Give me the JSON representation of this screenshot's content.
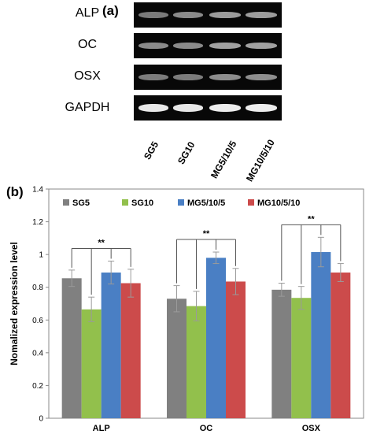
{
  "gel": {
    "panel_label": "(a)",
    "genes": [
      "ALP",
      "OC",
      "OSX",
      "GAPDH"
    ],
    "lanes": [
      "SG5",
      "SG10",
      "MG5/10/5",
      "MG10/5/10"
    ]
  },
  "chart_panel_label": "(b)",
  "chart_data": {
    "type": "bar",
    "categories": [
      "ALP",
      "OC",
      "OSX"
    ],
    "series": [
      {
        "name": "SG5",
        "values": [
          0.855,
          0.73,
          0.785
        ],
        "errors": [
          0.05,
          0.08,
          0.04
        ],
        "color": "#808080"
      },
      {
        "name": "SG10",
        "values": [
          0.665,
          0.685,
          0.735
        ],
        "errors": [
          0.075,
          0.09,
          0.07
        ],
        "color": "#92c04c"
      },
      {
        "name": "MG5/10/5",
        "values": [
          0.89,
          0.98,
          1.015
        ],
        "errors": [
          0.07,
          0.035,
          0.09
        ],
        "color": "#4a7fc4"
      },
      {
        "name": "MG10/5/10",
        "values": [
          0.825,
          0.835,
          0.89
        ],
        "errors": [
          0.085,
          0.08,
          0.055
        ],
        "color": "#cc4b4b"
      }
    ],
    "ylabel": "Nomalized expression level",
    "xlabel": "",
    "ylim": [
      0,
      1.4
    ],
    "yticks": [
      "0",
      "0.2",
      "0.4",
      "0.6",
      "0.8",
      "1",
      "1.2",
      "1.4"
    ],
    "significance": [
      {
        "category": "ALP",
        "label": "**"
      },
      {
        "category": "OC",
        "label": "**"
      },
      {
        "category": "OSX",
        "label": "**"
      }
    ],
    "legend": "top-inside",
    "grid": false
  }
}
